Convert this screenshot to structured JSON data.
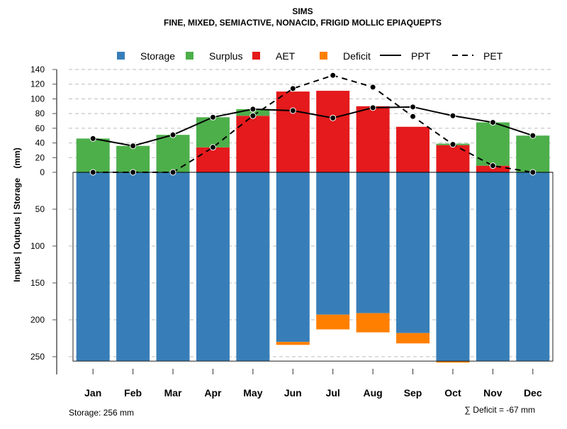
{
  "chart_data": {
    "type": "bar",
    "title": "SIMS",
    "subtitle": "FINE, MIXED, SEMIACTIVE, NONACID, FRIGID MOLLIC EPIAQUEPTS",
    "ylabel": "Inputs | Outputs | Storage    (mm)",
    "categories": [
      "Jan",
      "Feb",
      "Mar",
      "Apr",
      "May",
      "Jun",
      "Jul",
      "Aug",
      "Sep",
      "Oct",
      "Nov",
      "Dec"
    ],
    "upper_ticks": [
      0,
      20,
      40,
      60,
      80,
      100,
      120,
      140
    ],
    "lower_ticks": [
      50,
      100,
      150,
      200,
      250
    ],
    "ylim_upper": [
      0,
      140
    ],
    "ylim_lower": [
      0,
      256
    ],
    "grid": true,
    "legend_position": "top",
    "legend": [
      {
        "label": "Storage",
        "kind": "box",
        "color": "#377EB8"
      },
      {
        "label": "Surplus",
        "kind": "box",
        "color": "#4DAF4A"
      },
      {
        "label": "AET",
        "kind": "box",
        "color": "#E41A1C"
      },
      {
        "label": "Deficit",
        "kind": "box",
        "color": "#FF7F00"
      },
      {
        "label": "PPT",
        "kind": "solid",
        "color": "#000000"
      },
      {
        "label": "PET",
        "kind": "dashed",
        "color": "#000000"
      }
    ],
    "series": [
      {
        "name": "AET",
        "values": [
          0,
          0,
          0,
          34,
          77,
          110,
          111,
          90,
          62,
          37,
          9,
          0
        ]
      },
      {
        "name": "Surplus",
        "values": [
          46,
          36,
          51,
          41,
          9,
          0,
          0,
          0,
          0,
          2,
          59,
          50
        ]
      },
      {
        "name": "Storage",
        "values": [
          256,
          256,
          256,
          256,
          256,
          230,
          193,
          191,
          218,
          256,
          256,
          256
        ]
      },
      {
        "name": "Deficit",
        "values": [
          0,
          0,
          0,
          0,
          0,
          4,
          20,
          26,
          14,
          2,
          0,
          0
        ]
      },
      {
        "name": "PPT",
        "values": [
          46,
          36,
          51,
          75,
          86,
          84,
          74,
          88,
          89,
          77,
          68,
          50
        ]
      },
      {
        "name": "PET",
        "values": [
          0,
          0,
          0,
          34,
          77,
          114,
          132,
          116,
          76,
          38,
          9,
          0
        ]
      }
    ],
    "storage_capacity": 256,
    "footer_storage": "Storage: 256 mm",
    "footer_deficit": "∑ Deficit = -67 mm"
  }
}
